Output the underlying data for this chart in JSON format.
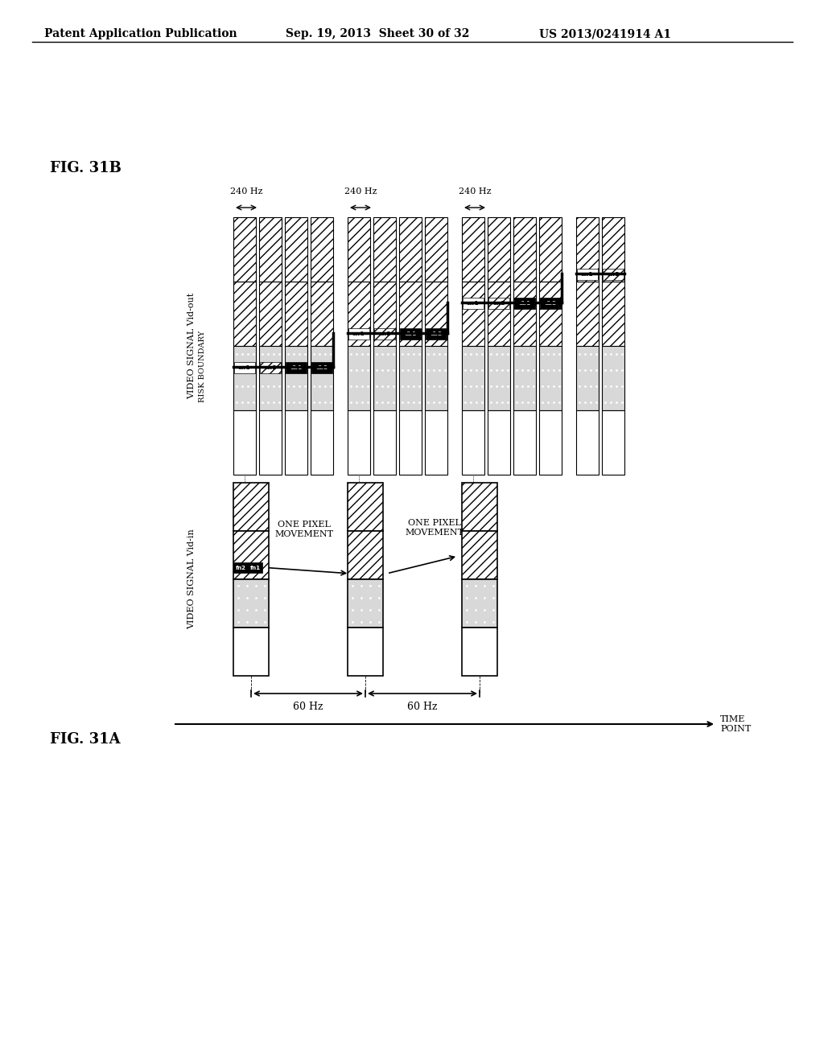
{
  "header_left": "Patent Application Publication",
  "header_mid": "Sep. 19, 2013  Sheet 30 of 32",
  "header_right": "US 2013/0241914 A1",
  "fig31a_label": "FIG. 31A",
  "fig31b_label": "FIG. 31B",
  "vid_in_label": "VIDEO SIGNAL Vid-in",
  "vid_out_label": "VIDEO SIGNAL Vid-out",
  "risk_boundary_label": "RISK BOUNDARY",
  "time_point_label": "TIME\nPOINT",
  "hz60_label": "60 Hz",
  "hz240_label": "240 Hz",
  "one_pixel_1": "ONE PIXEL\nMOVEMENT",
  "one_pixel_2": "ONE PIXEL\nMOVEMENT",
  "bg_color": "#ffffff"
}
